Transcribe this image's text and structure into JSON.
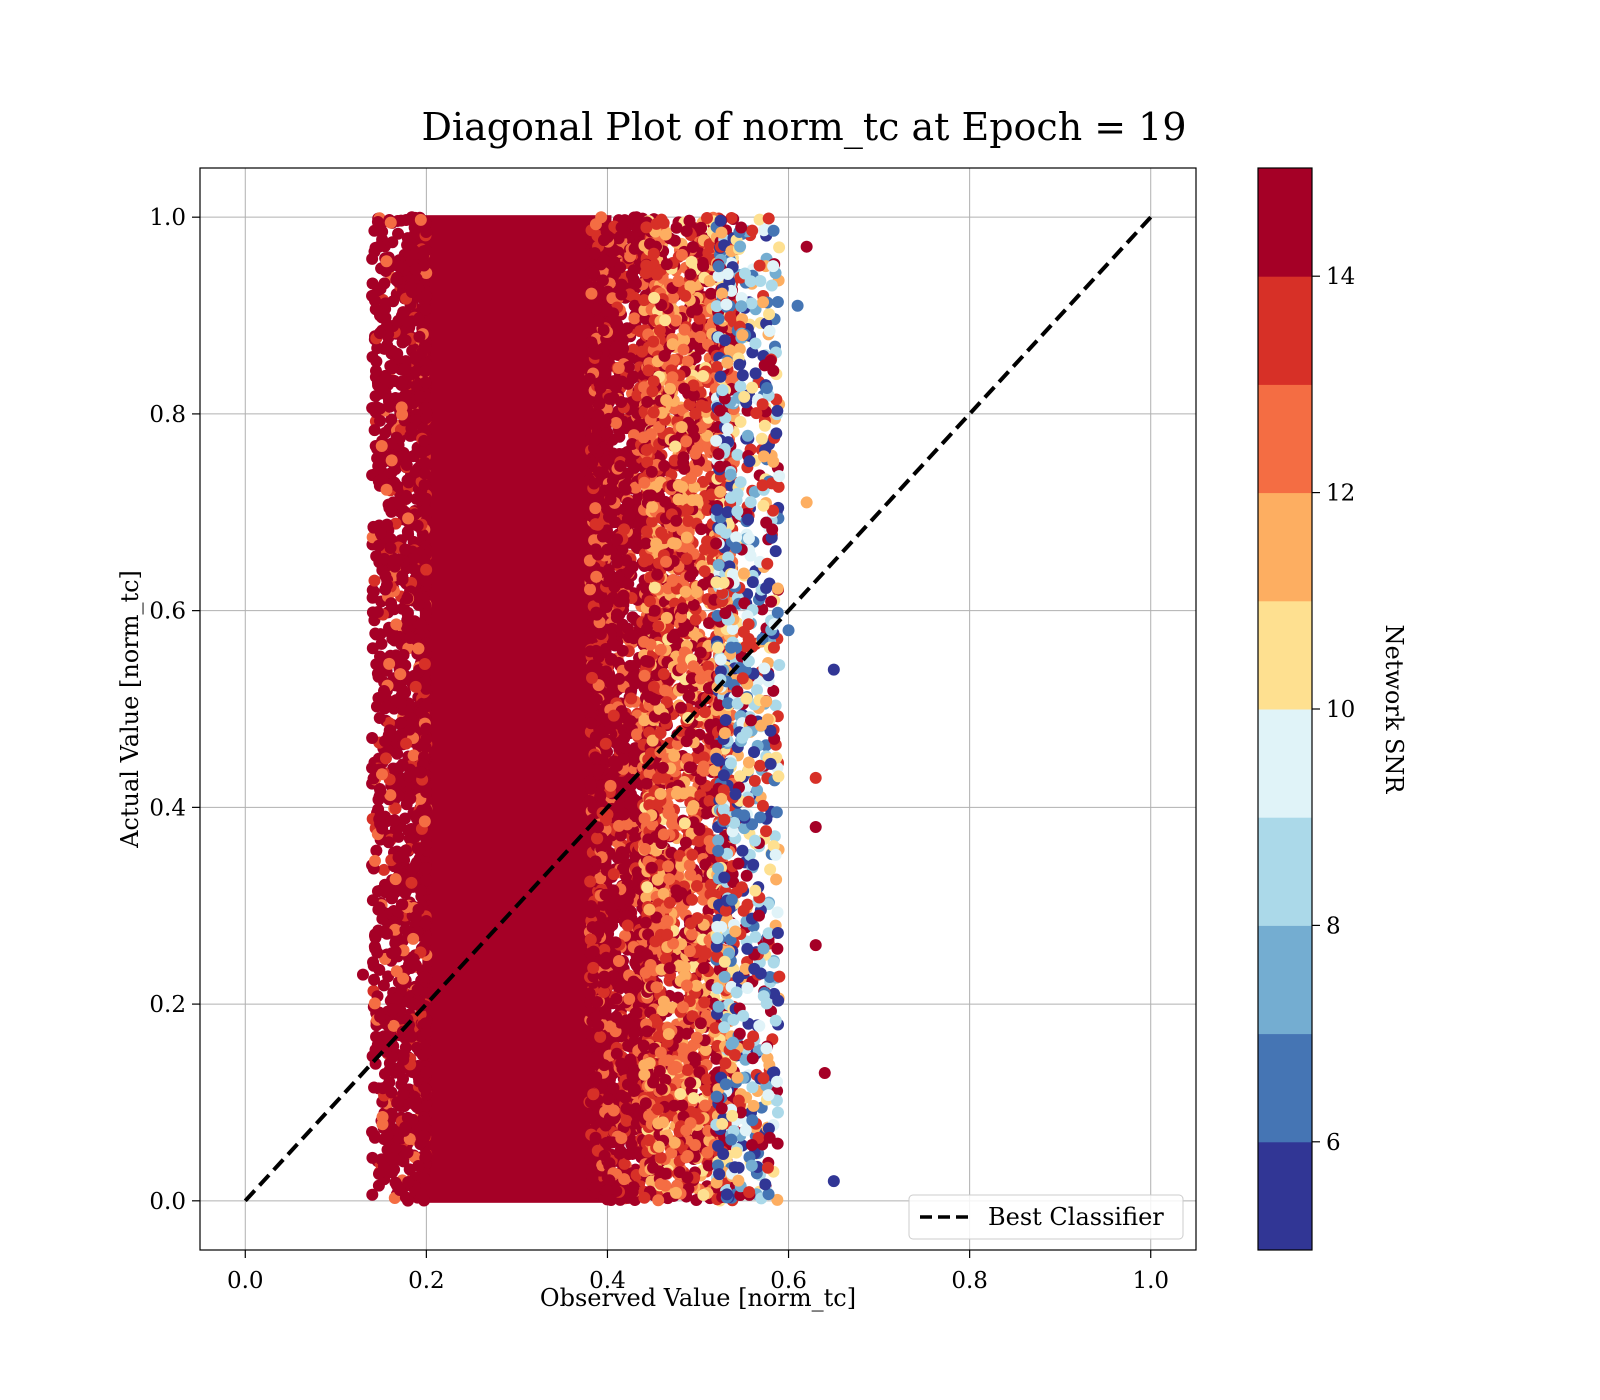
{
  "chart_data": {
    "type": "scatter",
    "title": "Diagonal Plot of norm_tc at Epoch = 19",
    "xlabel": "Observed Value [norm_tc]",
    "ylabel": "Actual Value [norm_tc]",
    "xlim": [
      -0.05,
      1.05
    ],
    "ylim": [
      -0.05,
      1.05
    ],
    "xticks": [
      "0.0",
      "0.2",
      "0.4",
      "0.6",
      "0.8",
      "1.0"
    ],
    "yticks": [
      "0.0",
      "0.2",
      "0.4",
      "0.6",
      "0.8",
      "1.0"
    ],
    "grid": true,
    "legend": {
      "position": "lower-right",
      "entries": [
        "Best Classifier"
      ]
    },
    "reference_line": {
      "name": "Best Classifier",
      "style": "dashed",
      "color": "#000000",
      "x": [
        0.0,
        1.0
      ],
      "y": [
        0.0,
        1.0
      ]
    },
    "scatter_extent": {
      "x_dense_core": [
        0.2,
        0.4
      ],
      "x_spread": [
        0.13,
        0.65
      ],
      "y_range": [
        0.0,
        1.0
      ]
    },
    "outliers": [
      {
        "x": 0.65,
        "y": 0.54,
        "snr": 5.5
      },
      {
        "x": 0.65,
        "y": 0.02,
        "snr": 5.5
      },
      {
        "x": 0.62,
        "y": 0.97,
        "snr": 14.5
      },
      {
        "x": 0.61,
        "y": 0.91,
        "snr": 6.5
      },
      {
        "x": 0.62,
        "y": 0.71,
        "snr": 11.5
      },
      {
        "x": 0.63,
        "y": 0.43,
        "snr": 13.5
      },
      {
        "x": 0.63,
        "y": 0.38,
        "snr": 14.5
      },
      {
        "x": 0.63,
        "y": 0.26,
        "snr": 14.5
      },
      {
        "x": 0.64,
        "y": 0.13,
        "snr": 14.5
      },
      {
        "x": 0.6,
        "y": 0.58,
        "snr": 6.5
      },
      {
        "x": 0.13,
        "y": 0.23,
        "snr": 14.5
      },
      {
        "x": 0.14,
        "y": 0.44,
        "snr": 14.5
      },
      {
        "x": 0.14,
        "y": 0.92,
        "snr": 14.5
      },
      {
        "x": 0.14,
        "y": 0.07,
        "snr": 14.5
      }
    ],
    "colorbar": {
      "label": "Network SNR",
      "range": [
        5,
        15
      ],
      "ticks": [
        "6",
        "8",
        "10",
        "12",
        "14"
      ],
      "colors": [
        "#313695",
        "#4575b4",
        "#74add1",
        "#abd9e9",
        "#e0f3f8",
        "#fee090",
        "#fdae61",
        "#f46d43",
        "#d73027",
        "#a50026"
      ]
    }
  }
}
